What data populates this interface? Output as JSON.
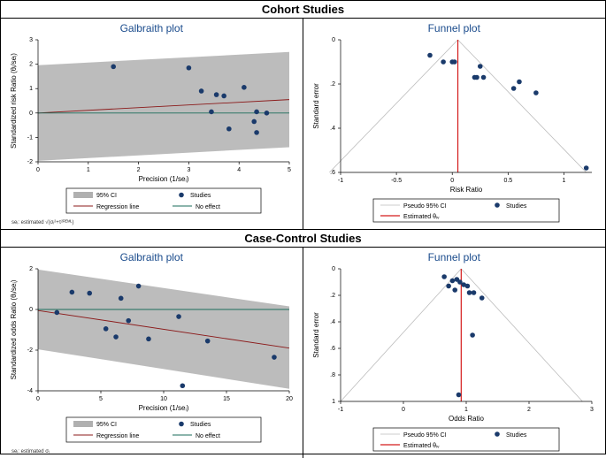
{
  "headers": {
    "cohort": "Cohort Studies",
    "casecontrol": "Case-Control Studies"
  },
  "titles": {
    "galbraith": "Galbraith plot",
    "funnel": "Funnel plot"
  },
  "colors": {
    "title": "#1a4b8c",
    "ci_band": "#b0b0b0",
    "regression": "#8b1a1a",
    "noeffect": "#1a6b5a",
    "point": "#1a3a6b",
    "pseudo_ci": "#bcbcbc",
    "estimated": "#d41c1c",
    "bg": "#ffffff"
  },
  "cohort_galbraith": {
    "type": "scatter",
    "title": "Galbraith plot",
    "xlabel": "Precision (1/seᵢ)",
    "ylabel": "Standardized risk Ratio (θᵢ/seᵢ)",
    "xlim": [
      0,
      5
    ],
    "xticks": [
      0,
      1,
      2,
      3,
      4,
      5
    ],
    "ylim": [
      -2,
      3
    ],
    "yticks": [
      -2,
      -1,
      0,
      1,
      2,
      3
    ],
    "ci_band": {
      "x": [
        0,
        5
      ],
      "lower": [
        -1.96,
        -1.4
      ],
      "upper": [
        1.96,
        2.5
      ]
    },
    "regression": {
      "x": [
        0,
        5
      ],
      "y": [
        0.0,
        0.55
      ]
    },
    "noeffect": {
      "x": [
        0,
        5
      ],
      "y": [
        0,
        0
      ]
    },
    "points": [
      {
        "x": 1.5,
        "y": 1.9
      },
      {
        "x": 3.0,
        "y": 1.85
      },
      {
        "x": 3.25,
        "y": 0.9
      },
      {
        "x": 3.45,
        "y": 0.05
      },
      {
        "x": 3.55,
        "y": 0.75
      },
      {
        "x": 3.7,
        "y": 0.7
      },
      {
        "x": 3.8,
        "y": -0.65
      },
      {
        "x": 4.1,
        "y": 1.05
      },
      {
        "x": 4.3,
        "y": -0.35
      },
      {
        "x": 4.35,
        "y": 0.05
      },
      {
        "x": 4.35,
        "y": -0.8
      },
      {
        "x": 4.55,
        "y": 0.0
      }
    ],
    "legend": {
      "items": [
        {
          "swatch": "ci",
          "label": "95% CI"
        },
        {
          "swatch": "point",
          "label": "Studies"
        },
        {
          "swatch": "reg",
          "label": "Regression line"
        },
        {
          "swatch": "noeff",
          "label": "No effect"
        }
      ]
    },
    "footnote": "seᵢ: estimated √(σᵢ²+τ²ᴿᴱᴹᴸ)"
  },
  "cohort_funnel": {
    "type": "funnel",
    "title": "Funnel plot",
    "xlabel": "Risk Ratio",
    "ylabel": "Standard error",
    "xlim": [
      -1,
      1.25
    ],
    "xticks": [
      -1,
      -0.5,
      0,
      0.5,
      1
    ],
    "ylim": [
      0.6,
      0
    ],
    "yticks": [
      0,
      0.2,
      0.4,
      0.6
    ],
    "apex_x": 0.05,
    "ci_lines": {
      "left_bottom_x": -1.1,
      "right_bottom_x": 1.2,
      "bottom_y": 0.6
    },
    "estimated_x": 0.05,
    "points": [
      {
        "x": -0.2,
        "y": 0.07
      },
      {
        "x": -0.08,
        "y": 0.1
      },
      {
        "x": 0.0,
        "y": 0.1
      },
      {
        "x": 0.02,
        "y": 0.1
      },
      {
        "x": 0.25,
        "y": 0.12
      },
      {
        "x": 0.2,
        "y": 0.17
      },
      {
        "x": 0.22,
        "y": 0.17
      },
      {
        "x": 0.28,
        "y": 0.17
      },
      {
        "x": 0.55,
        "y": 0.22
      },
      {
        "x": 0.6,
        "y": 0.19
      },
      {
        "x": 0.75,
        "y": 0.24
      },
      {
        "x": 1.2,
        "y": 0.58
      }
    ],
    "legend": {
      "items": [
        {
          "swatch": "pseudo",
          "label": "Pseudo 95% CI"
        },
        {
          "swatch": "point",
          "label": "Studies"
        },
        {
          "swatch": "est",
          "label": "Estimated θᵢᵥ"
        }
      ]
    }
  },
  "cc_galbraith": {
    "type": "scatter",
    "title": "Galbraith plot",
    "xlabel": "Precision (1/seᵢ)",
    "ylabel": "Standardized odds Ratio (θᵢ/seᵢ)",
    "xlim": [
      0,
      20
    ],
    "xticks": [
      0,
      5,
      10,
      15,
      20
    ],
    "ylim": [
      -4,
      2
    ],
    "yticks": [
      -4,
      -2,
      0,
      2
    ],
    "ci_band": {
      "x": [
        0,
        20
      ],
      "lower": [
        -1.96,
        -3.9
      ],
      "upper": [
        1.96,
        0.15
      ]
    },
    "regression": {
      "x": [
        0,
        20
      ],
      "y": [
        -0.05,
        -1.9
      ]
    },
    "noeffect": {
      "x": [
        0,
        20
      ],
      "y": [
        0,
        0
      ]
    },
    "points": [
      {
        "x": 1.5,
        "y": -0.15
      },
      {
        "x": 2.7,
        "y": 0.85
      },
      {
        "x": 4.1,
        "y": 0.8
      },
      {
        "x": 5.4,
        "y": -0.95
      },
      {
        "x": 6.2,
        "y": -1.35
      },
      {
        "x": 6.6,
        "y": 0.55
      },
      {
        "x": 7.2,
        "y": -0.55
      },
      {
        "x": 8.0,
        "y": 1.15
      },
      {
        "x": 8.8,
        "y": -1.45
      },
      {
        "x": 11.2,
        "y": -0.35
      },
      {
        "x": 11.5,
        "y": -3.75
      },
      {
        "x": 13.5,
        "y": -1.55
      },
      {
        "x": 18.8,
        "y": -2.35
      }
    ],
    "legend": {
      "items": [
        {
          "swatch": "ci",
          "label": "95% CI"
        },
        {
          "swatch": "point",
          "label": "Studies"
        },
        {
          "swatch": "reg",
          "label": "Regression line"
        },
        {
          "swatch": "noeff",
          "label": "No effect"
        }
      ]
    },
    "footnote": "seᵢ: estimated σᵢ"
  },
  "cc_funnel": {
    "type": "funnel",
    "title": "Funnel plot",
    "xlabel": "Odds Ratio",
    "ylabel": "Standard error",
    "xlim": [
      -1,
      3
    ],
    "xticks": [
      -1,
      0,
      1,
      2,
      3
    ],
    "ylim": [
      1,
      0
    ],
    "yticks": [
      0,
      0.2,
      0.4,
      0.6,
      0.8,
      1
    ],
    "apex_x": 0.92,
    "ci_lines": {
      "left_bottom_x": -1.0,
      "right_bottom_x": 2.85,
      "bottom_y": 1.0
    },
    "estimated_x": 0.92,
    "points": [
      {
        "x": 0.65,
        "y": 0.06
      },
      {
        "x": 0.72,
        "y": 0.13
      },
      {
        "x": 0.78,
        "y": 0.09
      },
      {
        "x": 0.82,
        "y": 0.16
      },
      {
        "x": 0.85,
        "y": 0.08
      },
      {
        "x": 0.9,
        "y": 0.1
      },
      {
        "x": 0.96,
        "y": 0.12
      },
      {
        "x": 1.02,
        "y": 0.13
      },
      {
        "x": 1.05,
        "y": 0.18
      },
      {
        "x": 1.12,
        "y": 0.18
      },
      {
        "x": 1.25,
        "y": 0.22
      },
      {
        "x": 1.1,
        "y": 0.5
      },
      {
        "x": 0.88,
        "y": 0.95
      }
    ],
    "legend": {
      "items": [
        {
          "swatch": "pseudo",
          "label": "Pseudo 95% CI"
        },
        {
          "swatch": "point",
          "label": "Studies"
        },
        {
          "swatch": "est",
          "label": "Estimated θᵢᵥ"
        }
      ]
    }
  }
}
